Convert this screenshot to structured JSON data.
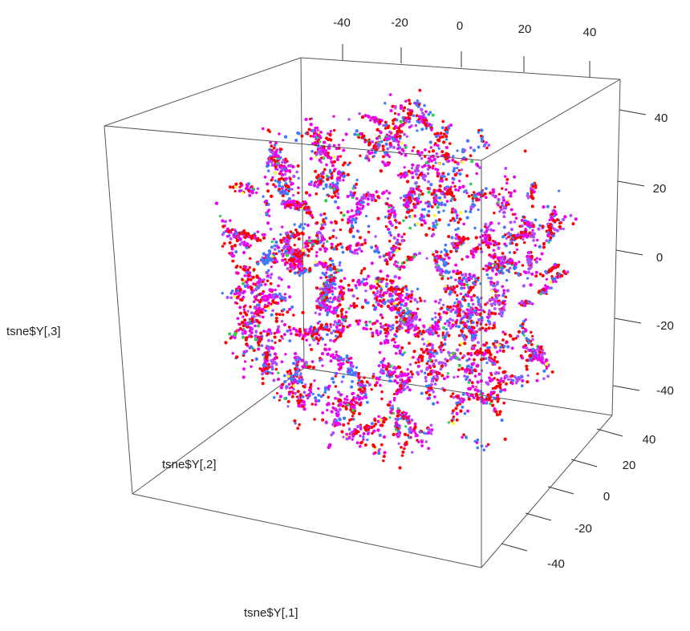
{
  "chart_data": {
    "type": "scatter",
    "projection": "3d",
    "xlabel": "tsne$Y[,1]",
    "ylabel": "tsne$Y[,2]",
    "zlabel": "tsne$Y[,3]",
    "xlim": [
      -50,
      50
    ],
    "ylim": [
      -50,
      50
    ],
    "zlim": [
      -50,
      50
    ],
    "x_ticks": [
      "-40",
      "-20",
      "0",
      "20",
      "40"
    ],
    "y_ticks": [
      "40",
      "20",
      "0",
      "-20",
      "-40"
    ],
    "z_ticks": [
      "40",
      "20",
      "0",
      "-20",
      "-40"
    ],
    "grid": false,
    "point_colors": [
      "#ff0000",
      "#ee00ee",
      "#b24dff",
      "#3d7bff",
      "#33cc55",
      "#ffff33"
    ],
    "point_count_approx": 6000
  }
}
